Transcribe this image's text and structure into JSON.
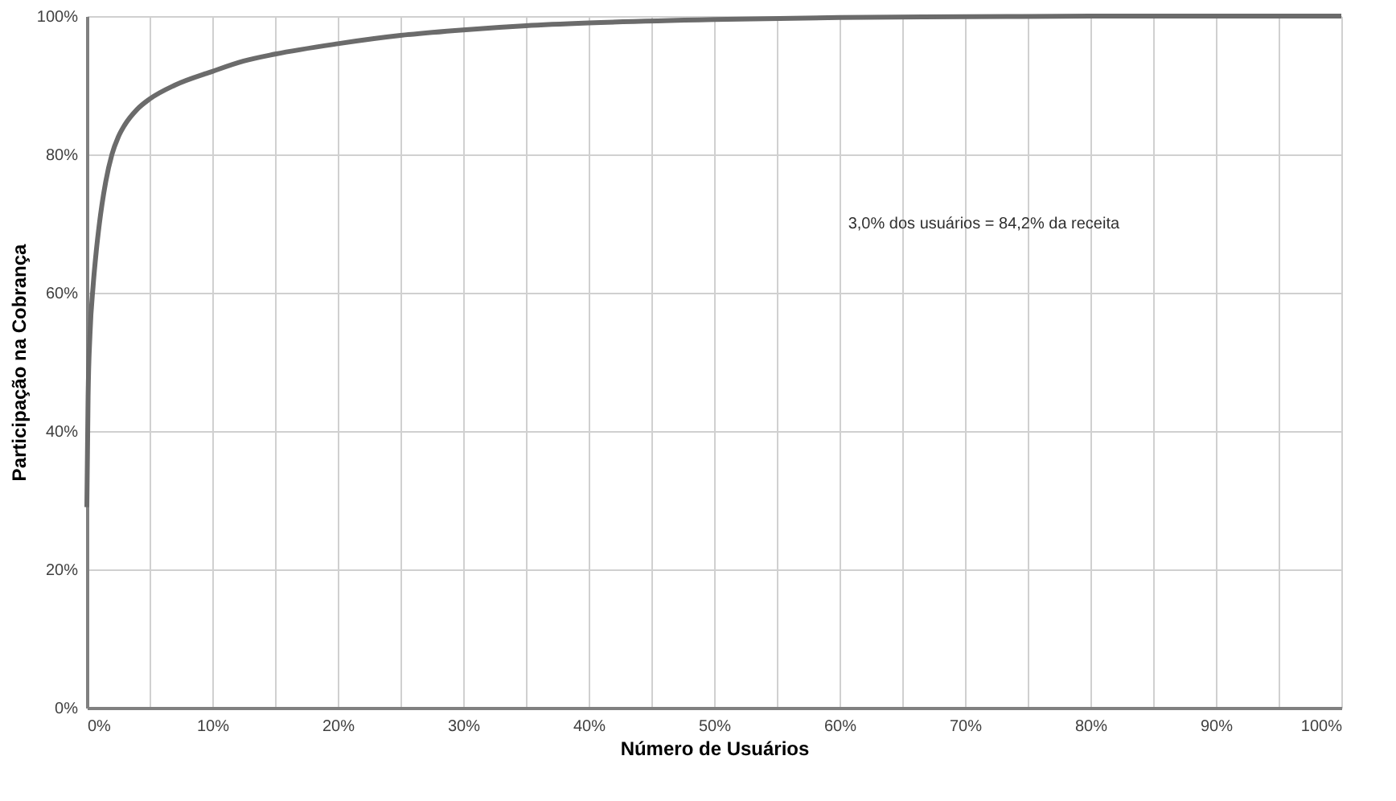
{
  "chart_data": {
    "type": "line",
    "xlabel": "Número de Usuários",
    "ylabel": "Participação na Cobrança",
    "x": [
      0,
      0.1,
      0.25,
      0.5,
      0.75,
      1,
      1.5,
      2,
      2.5,
      3,
      4,
      5,
      7,
      10,
      12.5,
      15,
      20,
      25,
      30,
      35,
      40,
      50,
      60,
      70,
      80,
      90,
      100
    ],
    "series": [
      {
        "color": "#6b6b6b",
        "values": [
          29,
          45,
          54,
          61,
          66,
          70,
          76,
          80,
          82.5,
          84.2,
          86.5,
          88,
          90,
          92,
          93.5,
          94.5,
          96,
          97.2,
          98,
          98.6,
          99,
          99.5,
          99.8,
          99.9,
          100,
          100,
          100
        ]
      }
    ],
    "xlim": [
      0,
      100
    ],
    "ylim": [
      0,
      100
    ],
    "xticks": [
      {
        "value": 0,
        "label": "0%"
      },
      {
        "value": 5,
        "label": null
      },
      {
        "value": 10,
        "label": "10%"
      },
      {
        "value": 15,
        "label": null
      },
      {
        "value": 20,
        "label": "20%"
      },
      {
        "value": 25,
        "label": null
      },
      {
        "value": 30,
        "label": "30%"
      },
      {
        "value": 35,
        "label": null
      },
      {
        "value": 40,
        "label": "40%"
      },
      {
        "value": 45,
        "label": null
      },
      {
        "value": 50,
        "label": "50%"
      },
      {
        "value": 55,
        "label": null
      },
      {
        "value": 60,
        "label": "60%"
      },
      {
        "value": 65,
        "label": null
      },
      {
        "value": 70,
        "label": "70%"
      },
      {
        "value": 75,
        "label": null
      },
      {
        "value": 80,
        "label": "80%"
      },
      {
        "value": 85,
        "label": null
      },
      {
        "value": 90,
        "label": "90%"
      },
      {
        "value": 95,
        "label": null
      },
      {
        "value": 100,
        "label": "100%"
      }
    ],
    "yticks": [
      {
        "value": 0,
        "label": "0%"
      },
      {
        "value": 20,
        "label": "20%"
      },
      {
        "value": 40,
        "label": "40%"
      },
      {
        "value": 60,
        "label": "60%"
      },
      {
        "value": 80,
        "label": "80%"
      },
      {
        "value": 100,
        "label": "100%"
      }
    ],
    "grid": true,
    "marker": "none",
    "line_style": "solid",
    "annotations": [
      "3,0% dos usuários = 84,2% da receita"
    ]
  }
}
